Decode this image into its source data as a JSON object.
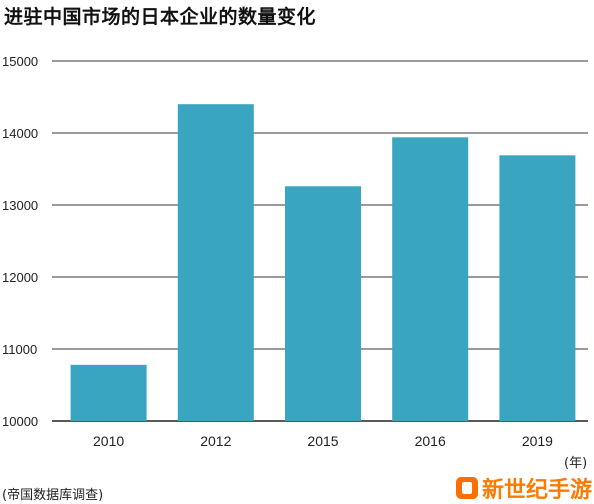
{
  "chart_data": {
    "type": "bar",
    "title": "进驻中国市场的日本企业的数量变化",
    "categories": [
      "2010",
      "2012",
      "2015",
      "2016",
      "2019"
    ],
    "values": [
      10780,
      14400,
      13260,
      13940,
      13690
    ],
    "ylim": [
      10000,
      15000
    ],
    "yticks": [
      10000,
      11000,
      12000,
      13000,
      14000,
      15000
    ],
    "xlabel": "(年)",
    "ylabel": "",
    "grid": true,
    "bar_color": "#3aa5c0",
    "source": "(帝国数据库调查)"
  },
  "watermark": {
    "text": "新世纪手游"
  }
}
